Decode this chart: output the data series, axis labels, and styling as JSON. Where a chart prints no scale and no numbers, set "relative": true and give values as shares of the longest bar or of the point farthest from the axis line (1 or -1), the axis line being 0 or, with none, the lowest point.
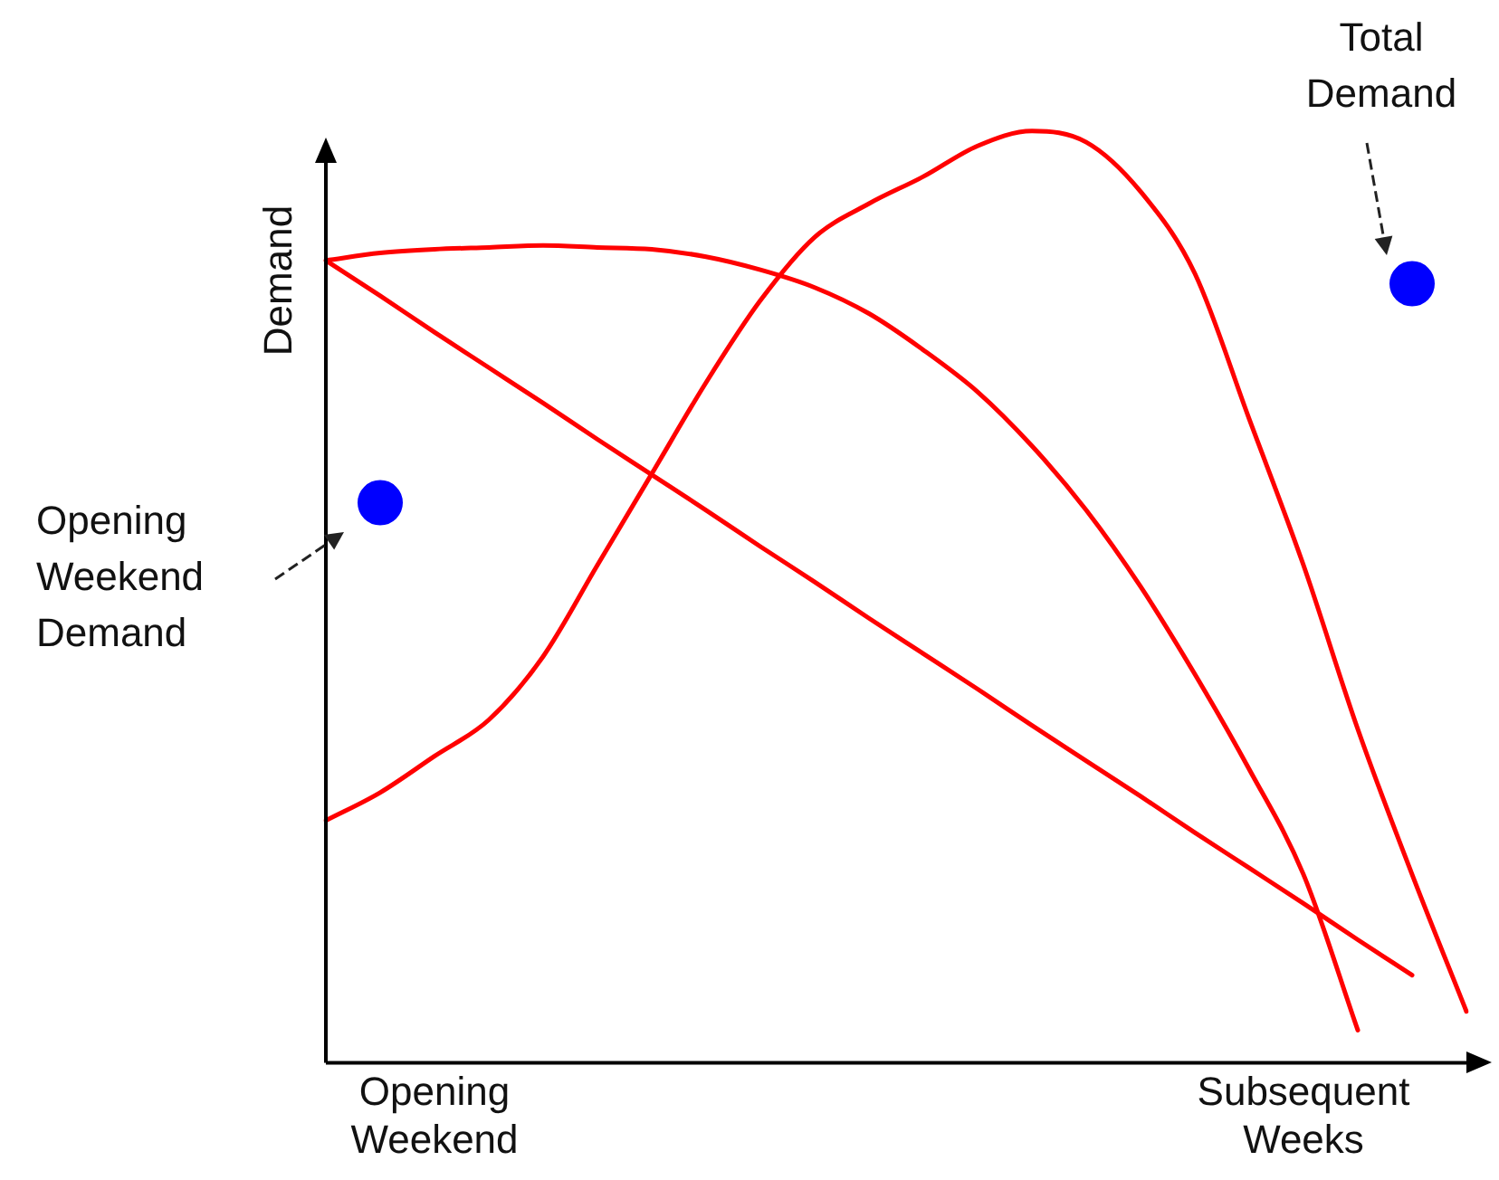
{
  "chart_data": {
    "type": "line",
    "relative": true,
    "ylabel": "Demand",
    "categories": [
      null,
      null,
      "Opening Weekend",
      null,
      null,
      null,
      null,
      null,
      null,
      null,
      null,
      null,
      null,
      null,
      null,
      null,
      null,
      null,
      "Subsequent Weeks",
      null,
      null,
      null
    ],
    "grid": false,
    "legend": false,
    "marker": "none",
    "line_style": "solid",
    "series": [
      {
        "color": "#ff0000",
        "values": [
          0.861,
          0.869,
          0.873,
          0.875,
          0.877,
          0.875,
          0.873,
          0.865,
          0.851,
          0.832,
          0.804,
          0.765,
          0.72,
          0.662,
          0.593,
          0.511,
          0.417,
          0.315,
          0.202,
          0.035,
          null,
          null
        ]
      },
      {
        "color": "#ff0000",
        "values": [
          0.861,
          0.823,
          0.784,
          0.746,
          0.708,
          0.669,
          0.631,
          0.593,
          0.554,
          0.516,
          0.477,
          0.439,
          0.401,
          0.362,
          0.324,
          0.286,
          0.247,
          0.209,
          0.171,
          0.132,
          0.094,
          null
        ]
      },
      {
        "color": "#ff0000",
        "values": [
          0.26,
          0.29,
          0.329,
          0.368,
          0.436,
          0.534,
          0.632,
          0.73,
          0.818,
          0.886,
          0.922,
          0.951,
          0.984,
          1,
          0.988,
          0.935,
          0.847,
          0.691,
          0.534,
          0.358,
          0.202,
          0.055
        ]
      },
      {
        "type": "scatter",
        "marker": "circle",
        "color": "#0000ff",
        "values": [
          null,
          0.601,
          null,
          null,
          null,
          null,
          null,
          null,
          null,
          null,
          null,
          null,
          null,
          null,
          null,
          null,
          null,
          null,
          null,
          null,
          0.836,
          null
        ]
      }
    ],
    "annotations": [
      "Opening Weekend Demand",
      "Total Demand"
    ]
  }
}
